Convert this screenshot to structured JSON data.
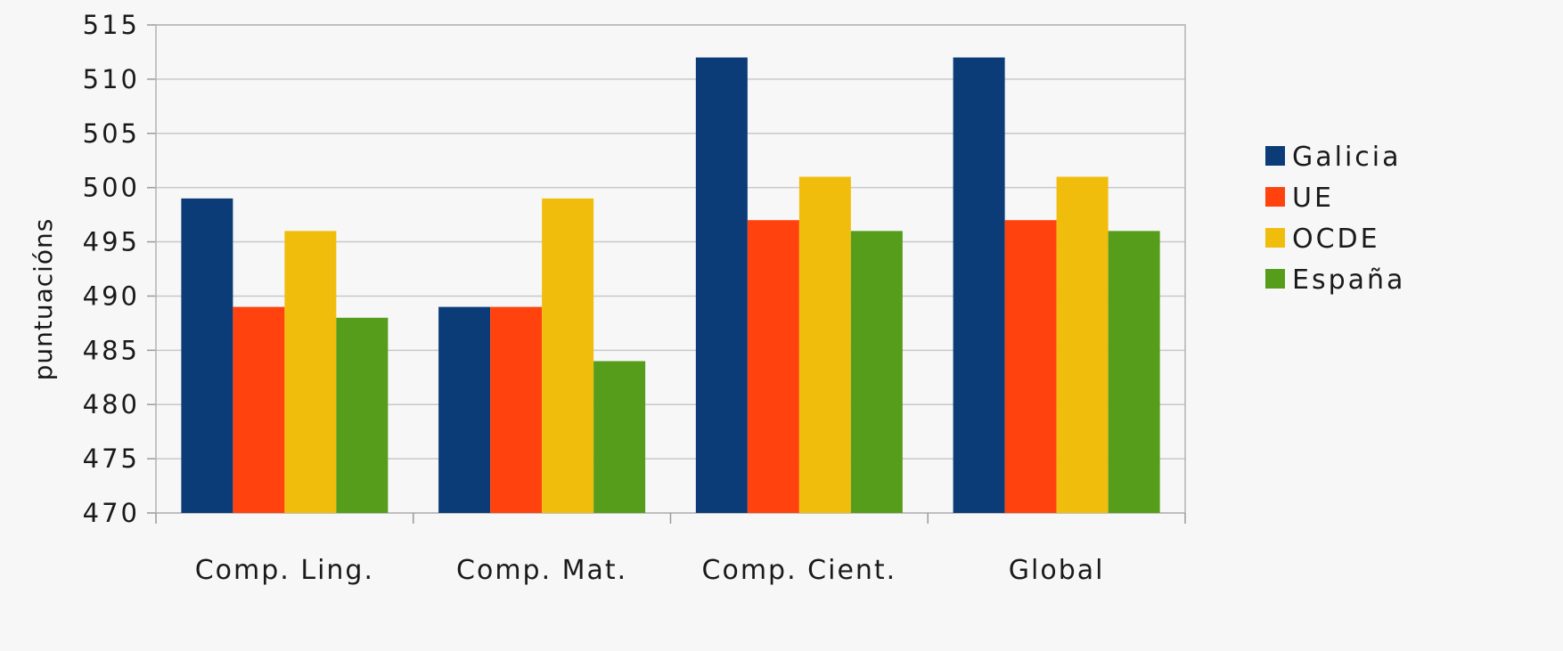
{
  "chart_data": {
    "type": "bar",
    "title": "",
    "xlabel": "",
    "ylabel": "puntuacións",
    "categories": [
      "Comp. Ling.",
      "Comp. Mat.",
      "Comp. Cient.",
      "Global"
    ],
    "ylim": [
      470,
      515
    ],
    "yticks": [
      470,
      475,
      480,
      485,
      490,
      495,
      500,
      505,
      510,
      515
    ],
    "grid": true,
    "legend_position": "right",
    "series": [
      {
        "name": "Galicia",
        "color": "#0b3c78",
        "values": [
          499,
          489,
          512,
          512
        ]
      },
      {
        "name": "UE",
        "color": "#ff420e",
        "values": [
          489,
          489,
          497,
          497
        ]
      },
      {
        "name": "OCDE",
        "color": "#f1bd0c",
        "values": [
          496,
          499,
          501,
          501
        ]
      },
      {
        "name": "España",
        "color": "#579d1c",
        "values": [
          488,
          484,
          496,
          496
        ]
      }
    ]
  }
}
